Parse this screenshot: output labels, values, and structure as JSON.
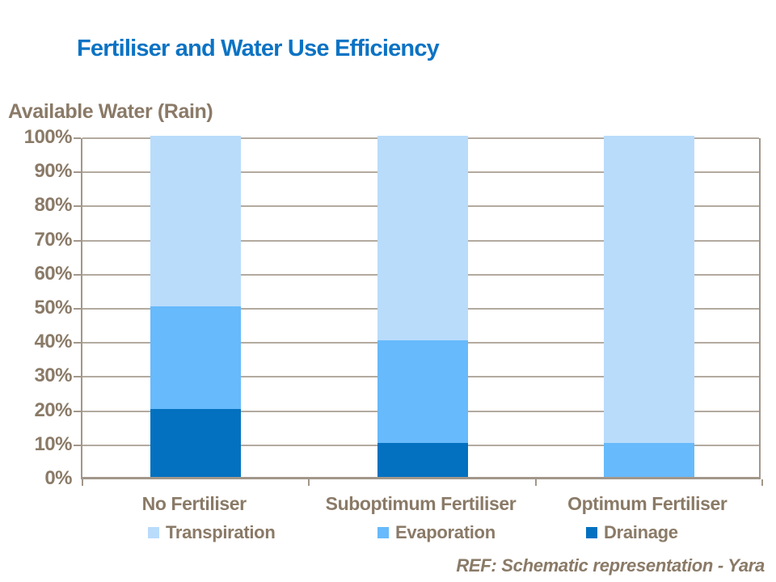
{
  "title": "Fertiliser and Water Use Efficiency",
  "axis_title": "Available Water (Rain)",
  "footer": "REF: Schematic representation - Yara",
  "colors": {
    "title_blue": "#0B73C4",
    "label_brown": "#8A7A67",
    "gridline": "#B3AA9F",
    "axis": "#A2978A",
    "transpiration": "#B9DCFB",
    "evaporation": "#67BAFB",
    "drainage": "#0371C0",
    "background": "#FFFFFF"
  },
  "chart_data": {
    "type": "bar",
    "stacked": true,
    "title": "Fertiliser and Water Use Efficiency",
    "ylabel": "Available Water (Rain)",
    "xlabel": "",
    "categories": [
      "No Fertiliser",
      "Suboptimum Fertiliser",
      "Optimum Fertiliser"
    ],
    "series": [
      {
        "name": "Transpiration",
        "color": "#B9DCFB",
        "values": [
          50,
          60,
          90
        ]
      },
      {
        "name": "Evaporation",
        "color": "#67BAFB",
        "values": [
          30,
          30,
          10
        ]
      },
      {
        "name": "Drainage",
        "color": "#0371C0",
        "values": [
          20,
          10,
          0
        ]
      }
    ],
    "ylim": [
      0,
      100
    ],
    "y_ticks": [
      "0%",
      "10%",
      "20%",
      "30%",
      "40%",
      "50%",
      "60%",
      "70%",
      "80%",
      "90%",
      "100%"
    ],
    "grid": true,
    "legend_position": "bottom",
    "legend": [
      "Transpiration",
      "Evaporation",
      "Drainage"
    ]
  }
}
